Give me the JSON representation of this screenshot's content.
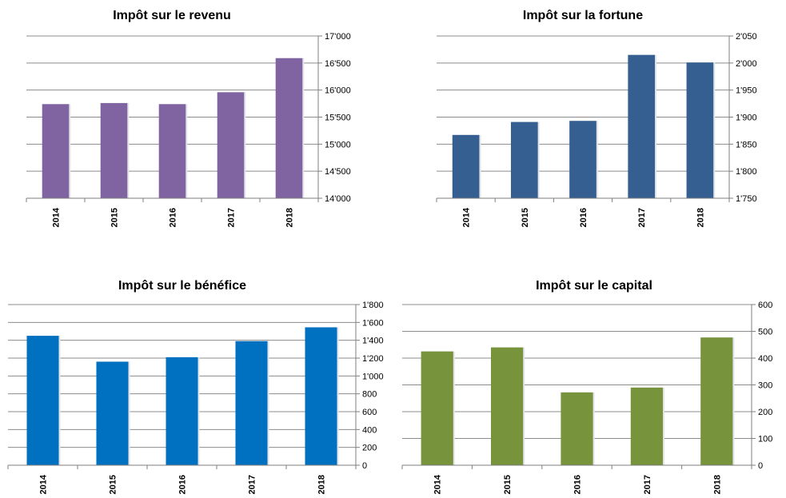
{
  "chart_data": [
    {
      "type": "bar",
      "title": "Impôt sur le revenu",
      "categories": [
        "2014",
        "2015",
        "2016",
        "2017",
        "2018"
      ],
      "values": [
        15740,
        15760,
        15740,
        15960,
        16590
      ],
      "ylim": [
        14000,
        17000
      ],
      "yticks": [
        "14'000",
        "14'500",
        "15'000",
        "15'500",
        "16'000",
        "16'500",
        "17'000"
      ],
      "yaxis_position": "right",
      "grid": true,
      "color": "#8064A2"
    },
    {
      "type": "bar",
      "title": "Impôt sur la fortune",
      "categories": [
        "2014",
        "2015",
        "2016",
        "2017",
        "2018"
      ],
      "values": [
        1867,
        1891,
        1893,
        2015,
        2001
      ],
      "ylim": [
        1750,
        2050
      ],
      "yticks": [
        "1'750",
        "1'800",
        "1'850",
        "1'900",
        "1'950",
        "2'000",
        "2'050"
      ],
      "yaxis_position": "right",
      "grid": true,
      "color": "#365F91"
    },
    {
      "type": "bar",
      "title": "Impôt sur le bénéfice",
      "categories": [
        "2014",
        "2015",
        "2016",
        "2017",
        "2018"
      ],
      "values": [
        1450,
        1160,
        1210,
        1390,
        1545
      ],
      "ylim": [
        0,
        1800
      ],
      "yticks": [
        "0",
        "200",
        "400",
        "600",
        "800",
        "1'000",
        "1'200",
        "1'400",
        "1'600",
        "1'800"
      ],
      "yaxis_position": "right",
      "grid": true,
      "color": "#0070C0"
    },
    {
      "type": "bar",
      "title": "Impôt sur le capital",
      "categories": [
        "2014",
        "2015",
        "2016",
        "2017",
        "2018"
      ],
      "values": [
        425,
        440,
        272,
        290,
        477
      ],
      "ylim": [
        0,
        600
      ],
      "yticks": [
        "0",
        "100",
        "200",
        "300",
        "400",
        "500",
        "600"
      ],
      "yaxis_position": "right",
      "grid": true,
      "color": "#77933C"
    }
  ]
}
